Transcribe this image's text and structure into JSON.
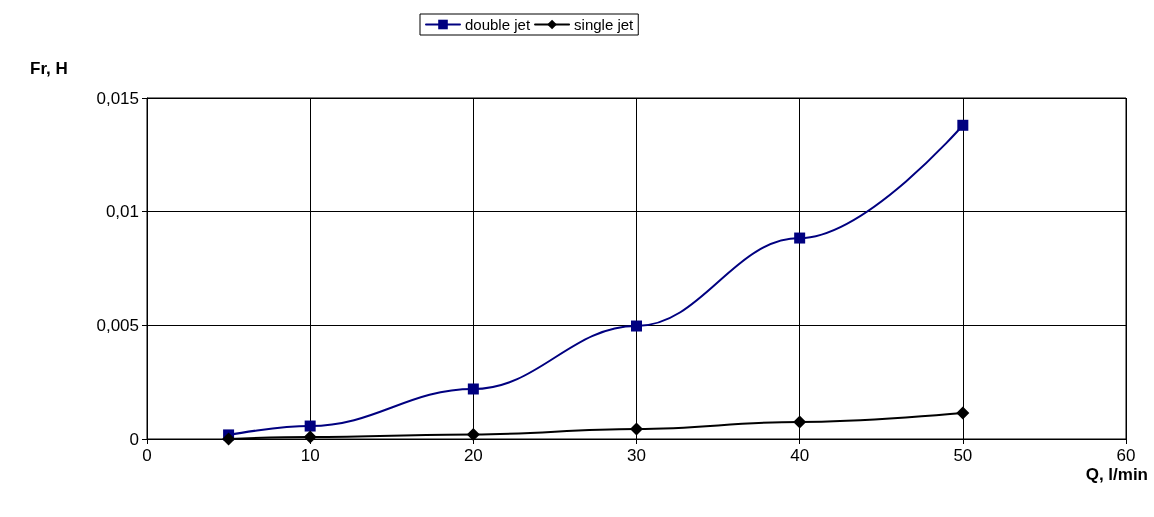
{
  "chart_data": {
    "type": "line",
    "xlabel": "Q, l/min",
    "ylabel": "Fr, H",
    "xlim": [
      0,
      60
    ],
    "xticks": [
      0,
      10,
      20,
      30,
      40,
      50,
      60
    ],
    "ylim": [
      0,
      0.015
    ],
    "yticks": [
      0,
      {
        "value": 0.005,
        "label": "0,005"
      },
      {
        "value": 0.01,
        "label": "0,01"
      },
      {
        "value": 0.015,
        "label": "0,015"
      }
    ],
    "grid": true,
    "legend": "top",
    "line_style": "solid",
    "series": [
      {
        "name": "double jet",
        "color": "#000080",
        "marker": "square",
        "x": [
          5,
          10,
          20,
          30,
          40,
          50
        ],
        "values": [
          0.00018,
          0.00057,
          0.0022,
          0.00497,
          0.00884,
          0.0138
        ]
      },
      {
        "name": "single jet",
        "color": "#000000",
        "marker": "diamond",
        "x": [
          5,
          10,
          20,
          30,
          40,
          50
        ],
        "values": [
          0,
          9e-05,
          0.0002,
          0.00044,
          0.00075,
          0.00114
        ]
      }
    ]
  }
}
